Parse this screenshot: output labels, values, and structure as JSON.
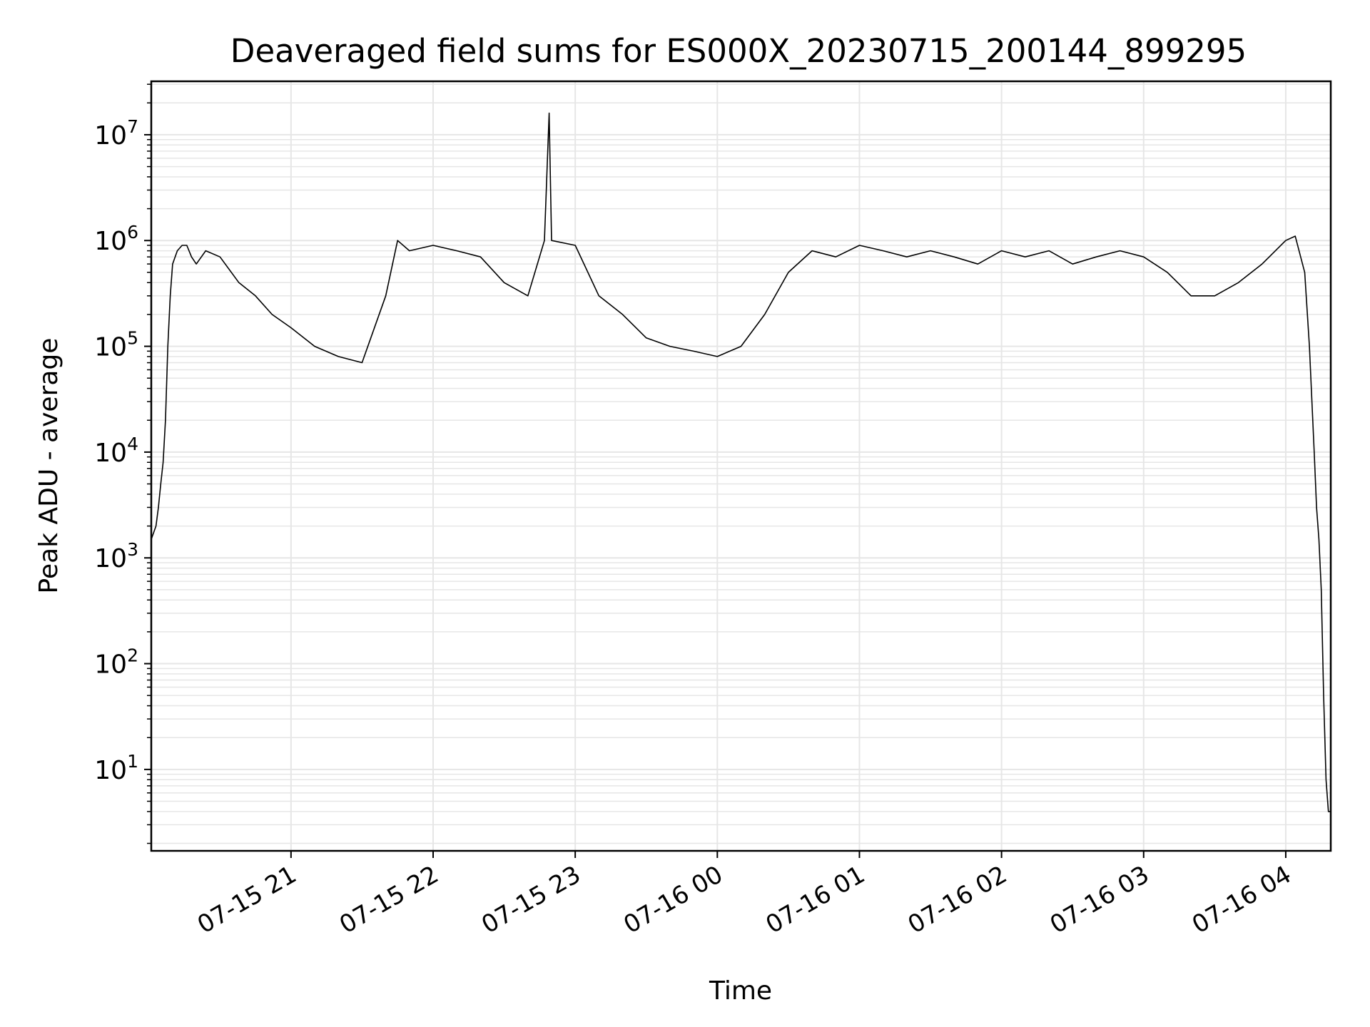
{
  "chart_data": {
    "type": "line",
    "title": "Deaveraged field sums for ES000X_20230715_200144_899295",
    "xlabel": "Time",
    "ylabel": "Peak ADU - average",
    "yscale": "log",
    "ylim": [
      1.7,
      32000000.0
    ],
    "xlim": [
      "2023-07-15 20:01",
      "2023-07-16 04:19"
    ],
    "grid": true,
    "line_color": "#000000",
    "grid_color": "#e6e6e6",
    "x_ticks": [
      {
        "value": "2023-07-15 21:00",
        "label": "07-15 21"
      },
      {
        "value": "2023-07-15 22:00",
        "label": "07-15 22"
      },
      {
        "value": "2023-07-15 23:00",
        "label": "07-15 23"
      },
      {
        "value": "2023-07-16 00:00",
        "label": "07-16 00"
      },
      {
        "value": "2023-07-16 01:00",
        "label": "07-16 01"
      },
      {
        "value": "2023-07-16 02:00",
        "label": "07-16 02"
      },
      {
        "value": "2023-07-16 03:00",
        "label": "07-16 03"
      },
      {
        "value": "2023-07-16 04:00",
        "label": "07-16 04"
      }
    ],
    "y_ticks": [
      {
        "value": 10,
        "base": "10",
        "exp": "1"
      },
      {
        "value": 100,
        "base": "10",
        "exp": "2"
      },
      {
        "value": 1000,
        "base": "10",
        "exp": "3"
      },
      {
        "value": 10000,
        "base": "10",
        "exp": "4"
      },
      {
        "value": 100000,
        "base": "10",
        "exp": "5"
      },
      {
        "value": 1000000,
        "base": "10",
        "exp": "6"
      },
      {
        "value": 10000000,
        "base": "10",
        "exp": "7"
      }
    ],
    "series": [
      {
        "x": [
          "2023-07-15 20:01",
          "2023-07-15 20:03",
          "2023-07-15 20:04",
          "2023-07-15 20:05",
          "2023-07-15 20:06",
          "2023-07-15 20:07",
          "2023-07-15 20:08",
          "2023-07-15 20:09",
          "2023-07-15 20:10",
          "2023-07-15 20:12",
          "2023-07-15 20:14",
          "2023-07-15 20:16",
          "2023-07-15 20:18",
          "2023-07-15 20:20",
          "2023-07-15 20:24",
          "2023-07-15 20:30",
          "2023-07-15 20:38",
          "2023-07-15 20:45",
          "2023-07-15 20:52",
          "2023-07-15 21:00",
          "2023-07-15 21:10",
          "2023-07-15 21:20",
          "2023-07-15 21:30",
          "2023-07-15 21:40",
          "2023-07-15 21:45",
          "2023-07-15 21:50",
          "2023-07-15 22:00",
          "2023-07-15 22:10",
          "2023-07-15 22:20",
          "2023-07-15 22:30",
          "2023-07-15 22:40",
          "2023-07-15 22:47",
          "2023-07-15 22:49",
          "2023-07-15 22:50",
          "2023-07-15 23:00",
          "2023-07-15 23:10",
          "2023-07-15 23:20",
          "2023-07-15 23:30",
          "2023-07-15 23:40",
          "2023-07-15 23:50",
          "2023-07-16 00:00",
          "2023-07-16 00:10",
          "2023-07-16 00:20",
          "2023-07-16 00:30",
          "2023-07-16 00:40",
          "2023-07-16 00:50",
          "2023-07-16 01:00",
          "2023-07-16 01:10",
          "2023-07-16 01:20",
          "2023-07-16 01:30",
          "2023-07-16 01:40",
          "2023-07-16 01:50",
          "2023-07-16 02:00",
          "2023-07-16 02:10",
          "2023-07-16 02:20",
          "2023-07-16 02:30",
          "2023-07-16 02:40",
          "2023-07-16 02:50",
          "2023-07-16 03:00",
          "2023-07-16 03:10",
          "2023-07-16 03:20",
          "2023-07-16 03:30",
          "2023-07-16 03:40",
          "2023-07-16 03:50",
          "2023-07-16 04:00",
          "2023-07-16 04:04",
          "2023-07-16 04:08",
          "2023-07-16 04:10",
          "2023-07-16 04:12",
          "2023-07-16 04:13",
          "2023-07-16 04:14",
          "2023-07-16 04:15",
          "2023-07-16 04:16",
          "2023-07-16 04:17",
          "2023-07-16 04:18",
          "2023-07-16 04:19"
        ],
        "y": [
          1500,
          2000,
          3000,
          5000,
          8000,
          20000,
          100000,
          300000,
          600000,
          800000,
          900000,
          900000,
          700000,
          600000,
          800000,
          700000,
          400000,
          300000,
          200000,
          150000,
          100000,
          80000,
          70000,
          300000,
          1000000,
          800000,
          900000,
          800000,
          700000,
          400000,
          300000,
          1000000,
          16000000,
          1000000,
          900000,
          300000,
          200000,
          120000,
          100000,
          90000,
          80000,
          100000,
          200000,
          500000,
          800000,
          700000,
          900000,
          800000,
          700000,
          800000,
          700000,
          600000,
          800000,
          700000,
          800000,
          600000,
          700000,
          800000,
          700000,
          500000,
          300000,
          300000,
          400000,
          600000,
          1000000,
          1100000,
          500000,
          100000,
          10000,
          3000,
          1500,
          500,
          50,
          8,
          4,
          4
        ]
      }
    ]
  }
}
